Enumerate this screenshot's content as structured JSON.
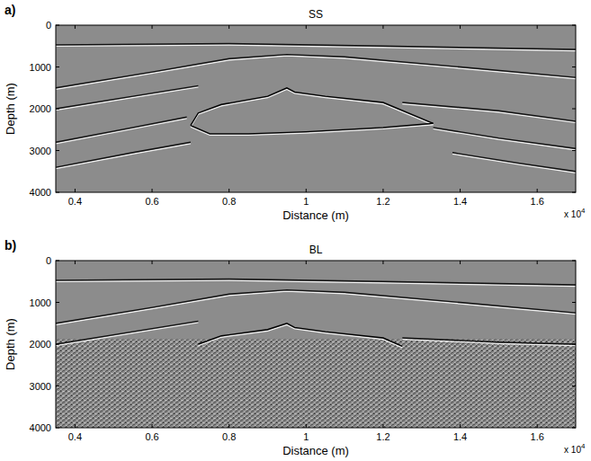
{
  "chart_data": [
    {
      "type": "line",
      "panel": "a)",
      "title": "SS",
      "x_label": "Distance (m)",
      "y_label": "Depth (m)",
      "axis_multiplier": {
        "text": "x 10",
        "exponent": 4
      },
      "xlim": [
        0.35,
        1.7
      ],
      "ylim": [
        4000,
        0
      ],
      "xticks": [
        0.4,
        0.6,
        0.8,
        1,
        1.2,
        1.4,
        1.6
      ],
      "yticks": [
        0,
        1000,
        2000,
        3000,
        4000
      ],
      "series": [
        {
          "color": "#111111",
          "x": [
            0.35,
            0.8,
            1.2,
            1.7
          ],
          "values": [
            470,
            440,
            500,
            580
          ]
        },
        {
          "color": "#111111",
          "x": [
            0.35,
            0.6,
            0.8,
            0.95,
            1.1,
            1.4,
            1.7
          ],
          "values": [
            1500,
            1120,
            800,
            700,
            760,
            1000,
            1250
          ]
        },
        {
          "color": "#111111",
          "x": [
            0.35,
            0.55,
            0.72
          ],
          "values": [
            2000,
            1700,
            1450
          ]
        },
        {
          "color": "#111111",
          "x": [
            1.25,
            1.5,
            1.7
          ],
          "values": [
            1850,
            2050,
            2300
          ]
        },
        {
          "color": "#111111",
          "x": [
            0.35,
            0.55,
            0.69
          ],
          "values": [
            2800,
            2450,
            2200
          ]
        },
        {
          "color": "#111111",
          "x": [
            1.33,
            1.5,
            1.7
          ],
          "values": [
            2450,
            2700,
            2950
          ]
        },
        {
          "color": "#111111",
          "x": [
            0.35,
            0.55,
            0.7
          ],
          "values": [
            3400,
            3050,
            2800
          ]
        },
        {
          "color": "#111111",
          "x": [
            1.38,
            1.55,
            1.7
          ],
          "values": [
            3050,
            3300,
            3500
          ]
        },
        {
          "color": "#000000",
          "x": [
            0.7,
            0.72,
            0.78,
            0.9,
            0.95,
            0.97,
            1.05,
            1.2,
            1.33,
            1.2,
            1.0,
            0.85,
            0.75,
            0.7
          ],
          "values": [
            2400,
            2100,
            1900,
            1700,
            1500,
            1600,
            1700,
            1850,
            2350,
            2450,
            2550,
            2600,
            2600,
            2400
          ]
        }
      ]
    },
    {
      "type": "line",
      "panel": "b)",
      "title": "BL",
      "x_label": "Distance (m)",
      "y_label": "Depth (m)",
      "axis_multiplier": {
        "text": "x 10",
        "exponent": 4
      },
      "xlim": [
        0.35,
        1.7
      ],
      "ylim": [
        4000,
        0
      ],
      "xticks": [
        0.4,
        0.6,
        0.8,
        1,
        1.2,
        1.4,
        1.6
      ],
      "yticks": [
        0,
        1000,
        2000,
        3000,
        4000
      ],
      "series": [
        {
          "color": "#111111",
          "x": [
            0.35,
            0.8,
            1.2,
            1.7
          ],
          "values": [
            470,
            440,
            500,
            580
          ]
        },
        {
          "color": "#111111",
          "x": [
            0.35,
            0.6,
            0.8,
            0.95,
            1.1,
            1.4,
            1.7
          ],
          "values": [
            1500,
            1120,
            800,
            700,
            760,
            1000,
            1250
          ]
        },
        {
          "color": "#111111",
          "x": [
            0.35,
            0.55,
            0.72
          ],
          "values": [
            2000,
            1700,
            1450
          ]
        },
        {
          "color": "#111111",
          "x": [
            1.25,
            1.5,
            1.7
          ],
          "values": [
            1850,
            1950,
            2000
          ]
        },
        {
          "color": "#000000",
          "x": [
            0.72,
            0.78,
            0.9,
            0.95,
            0.97,
            1.05,
            1.2,
            1.25
          ],
          "values": [
            2000,
            1800,
            1650,
            1500,
            1600,
            1700,
            1850,
            2050
          ]
        }
      ]
    }
  ]
}
